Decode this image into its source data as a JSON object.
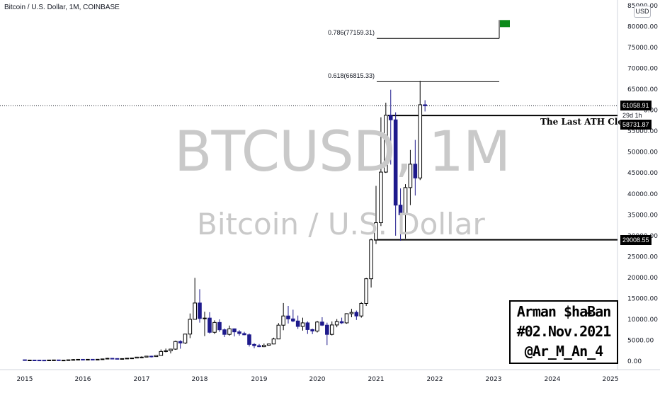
{
  "header": {
    "symbol_line": "Bitcoin / U.S. Dollar, 1M, COINBASE",
    "currency_badge": "USD"
  },
  "watermark": {
    "ticker": "BTCUSD, 1M",
    "name": "Bitcoin / U.S. Dollar"
  },
  "annotations": {
    "fib_786": "0.786(77159.31)",
    "fib_618": "0.618(66815.33)",
    "ath_label": "The Last ATH Close",
    "signature": [
      "Arman $haɃan",
      "#02.Nov.2021",
      "@Ar_M_An_4"
    ]
  },
  "price_tags": {
    "last_price": "61058.91",
    "countdown": "29d 1h",
    "ath_close": "58731.87",
    "support": "29008.55"
  },
  "colors": {
    "up_candle": "#000000",
    "down_candle": "#1e1a8c",
    "wick": "#000000",
    "flag": "#0c8a1a",
    "watermark": "#c9c9c9"
  },
  "chart_data": {
    "type": "candlestick",
    "interval": "1M",
    "ylim": [
      0,
      85000
    ],
    "y_ticks": [
      "85000.00",
      "80000.00",
      "75000.00",
      "70000.00",
      "65000.00",
      "60000.00",
      "55000.00",
      "50000.00",
      "45000.00",
      "40000.00",
      "35000.00",
      "30000.00",
      "25000.00",
      "20000.00",
      "15000.00",
      "10000.00",
      "5000.00",
      "0.00"
    ],
    "x_ticks": [
      "2015",
      "2016",
      "2017",
      "2018",
      "2019",
      "2020",
      "2021",
      "2022",
      "2023",
      "2024",
      "2025"
    ],
    "levels": [
      {
        "label": "0.786(77159.31)",
        "value": 77159.31
      },
      {
        "label": "0.618(66815.33)",
        "value": 66815.33
      },
      {
        "label": "The Last ATH Close",
        "value": 58731.87
      },
      {
        "label": "29008.55",
        "value": 29008.55
      }
    ],
    "candles": [
      {
        "date": "2015-01",
        "o": 320,
        "h": 320,
        "l": 170,
        "c": 220
      },
      {
        "date": "2015-02",
        "o": 220,
        "h": 270,
        "l": 210,
        "c": 255
      },
      {
        "date": "2015-03",
        "o": 255,
        "h": 300,
        "l": 240,
        "c": 245
      },
      {
        "date": "2015-04",
        "o": 245,
        "h": 260,
        "l": 215,
        "c": 235
      },
      {
        "date": "2015-05",
        "o": 235,
        "h": 245,
        "l": 230,
        "c": 230
      },
      {
        "date": "2015-06",
        "o": 230,
        "h": 265,
        "l": 220,
        "c": 265
      },
      {
        "date": "2015-07",
        "o": 265,
        "h": 315,
        "l": 255,
        "c": 285
      },
      {
        "date": "2015-08",
        "o": 285,
        "h": 285,
        "l": 200,
        "c": 230
      },
      {
        "date": "2015-09",
        "o": 230,
        "h": 245,
        "l": 225,
        "c": 237
      },
      {
        "date": "2015-10",
        "o": 237,
        "h": 330,
        "l": 235,
        "c": 315
      },
      {
        "date": "2015-11",
        "o": 315,
        "h": 500,
        "l": 305,
        "c": 378
      },
      {
        "date": "2015-12",
        "o": 378,
        "h": 465,
        "l": 345,
        "c": 430
      },
      {
        "date": "2016-01",
        "o": 430,
        "h": 465,
        "l": 350,
        "c": 368
      },
      {
        "date": "2016-02",
        "o": 368,
        "h": 440,
        "l": 365,
        "c": 437
      },
      {
        "date": "2016-03",
        "o": 437,
        "h": 440,
        "l": 400,
        "c": 416
      },
      {
        "date": "2016-04",
        "o": 416,
        "h": 465,
        "l": 415,
        "c": 448
      },
      {
        "date": "2016-05",
        "o": 448,
        "h": 545,
        "l": 440,
        "c": 531
      },
      {
        "date": "2016-06",
        "o": 531,
        "h": 780,
        "l": 530,
        "c": 673
      },
      {
        "date": "2016-07",
        "o": 673,
        "h": 705,
        "l": 610,
        "c": 624
      },
      {
        "date": "2016-08",
        "o": 624,
        "h": 625,
        "l": 540,
        "c": 575
      },
      {
        "date": "2016-09",
        "o": 575,
        "h": 630,
        "l": 570,
        "c": 608
      },
      {
        "date": "2016-10",
        "o": 608,
        "h": 720,
        "l": 605,
        "c": 700
      },
      {
        "date": "2016-11",
        "o": 700,
        "h": 760,
        "l": 680,
        "c": 742
      },
      {
        "date": "2016-12",
        "o": 742,
        "h": 975,
        "l": 740,
        "c": 963
      },
      {
        "date": "2017-01",
        "o": 963,
        "h": 1150,
        "l": 750,
        "c": 968
      },
      {
        "date": "2017-02",
        "o": 968,
        "h": 1200,
        "l": 915,
        "c": 1190
      },
      {
        "date": "2017-03",
        "o": 1190,
        "h": 1300,
        "l": 890,
        "c": 1080
      },
      {
        "date": "2017-04",
        "o": 1080,
        "h": 1350,
        "l": 1080,
        "c": 1350
      },
      {
        "date": "2017-05",
        "o": 1350,
        "h": 2790,
        "l": 1340,
        "c": 2300
      },
      {
        "date": "2017-06",
        "o": 2300,
        "h": 3000,
        "l": 2100,
        "c": 2480
      },
      {
        "date": "2017-07",
        "o": 2480,
        "h": 2950,
        "l": 1840,
        "c": 2870
      },
      {
        "date": "2017-08",
        "o": 2870,
        "h": 4900,
        "l": 2700,
        "c": 4700
      },
      {
        "date": "2017-09",
        "o": 4700,
        "h": 5000,
        "l": 2970,
        "c": 4340
      },
      {
        "date": "2017-10",
        "o": 4340,
        "h": 6450,
        "l": 4100,
        "c": 6470
      },
      {
        "date": "2017-11",
        "o": 6470,
        "h": 11400,
        "l": 5500,
        "c": 10000
      },
      {
        "date": "2017-12",
        "o": 10000,
        "h": 19900,
        "l": 10800,
        "c": 13900
      },
      {
        "date": "2018-01",
        "o": 13900,
        "h": 17200,
        "l": 9200,
        "c": 10200
      },
      {
        "date": "2018-02",
        "o": 10200,
        "h": 11800,
        "l": 6000,
        "c": 10300
      },
      {
        "date": "2018-03",
        "o": 10300,
        "h": 11700,
        "l": 6600,
        "c": 6900
      },
      {
        "date": "2018-04",
        "o": 6900,
        "h": 9750,
        "l": 6500,
        "c": 9250
      },
      {
        "date": "2018-05",
        "o": 9250,
        "h": 10000,
        "l": 7000,
        "c": 7500
      },
      {
        "date": "2018-06",
        "o": 7500,
        "h": 7800,
        "l": 5750,
        "c": 6400
      },
      {
        "date": "2018-07",
        "o": 6400,
        "h": 8500,
        "l": 6100,
        "c": 7730
      },
      {
        "date": "2018-08",
        "o": 7730,
        "h": 7800,
        "l": 5900,
        "c": 7000
      },
      {
        "date": "2018-09",
        "o": 7000,
        "h": 7400,
        "l": 6100,
        "c": 6600
      },
      {
        "date": "2018-10",
        "o": 6600,
        "h": 7000,
        "l": 6200,
        "c": 6300
      },
      {
        "date": "2018-11",
        "o": 6300,
        "h": 6600,
        "l": 3500,
        "c": 4000
      },
      {
        "date": "2018-12",
        "o": 4000,
        "h": 4300,
        "l": 3100,
        "c": 3700
      },
      {
        "date": "2019-01",
        "o": 3700,
        "h": 4100,
        "l": 3350,
        "c": 3450
      },
      {
        "date": "2019-02",
        "o": 3450,
        "h": 4200,
        "l": 3350,
        "c": 3800
      },
      {
        "date": "2019-03",
        "o": 3800,
        "h": 4100,
        "l": 3700,
        "c": 4100
      },
      {
        "date": "2019-04",
        "o": 4100,
        "h": 5600,
        "l": 4050,
        "c": 5300
      },
      {
        "date": "2019-05",
        "o": 5300,
        "h": 9100,
        "l": 5300,
        "c": 8600
      },
      {
        "date": "2019-06",
        "o": 8600,
        "h": 13900,
        "l": 7400,
        "c": 10800
      },
      {
        "date": "2019-07",
        "o": 10800,
        "h": 13200,
        "l": 9000,
        "c": 10100
      },
      {
        "date": "2019-08",
        "o": 10100,
        "h": 12300,
        "l": 9300,
        "c": 9600
      },
      {
        "date": "2019-09",
        "o": 9600,
        "h": 10900,
        "l": 7700,
        "c": 8300
      },
      {
        "date": "2019-10",
        "o": 8300,
        "h": 10400,
        "l": 7300,
        "c": 9150
      },
      {
        "date": "2019-11",
        "o": 9150,
        "h": 9500,
        "l": 6500,
        "c": 7550
      },
      {
        "date": "2019-12",
        "o": 7550,
        "h": 7750,
        "l": 6450,
        "c": 7200
      },
      {
        "date": "2020-01",
        "o": 7200,
        "h": 9600,
        "l": 6850,
        "c": 9350
      },
      {
        "date": "2020-02",
        "o": 9350,
        "h": 10500,
        "l": 8400,
        "c": 8600
      },
      {
        "date": "2020-03",
        "o": 8600,
        "h": 9200,
        "l": 3850,
        "c": 6400
      },
      {
        "date": "2020-04",
        "o": 6400,
        "h": 9500,
        "l": 6150,
        "c": 8650
      },
      {
        "date": "2020-05",
        "o": 8650,
        "h": 10050,
        "l": 8100,
        "c": 9450
      },
      {
        "date": "2020-06",
        "o": 9450,
        "h": 10400,
        "l": 8900,
        "c": 9150
      },
      {
        "date": "2020-07",
        "o": 9150,
        "h": 11450,
        "l": 8950,
        "c": 11350
      },
      {
        "date": "2020-08",
        "o": 11350,
        "h": 12500,
        "l": 10500,
        "c": 11650
      },
      {
        "date": "2020-09",
        "o": 11650,
        "h": 12100,
        "l": 9850,
        "c": 10800
      },
      {
        "date": "2020-10",
        "o": 10800,
        "h": 14100,
        "l": 10400,
        "c": 13800
      },
      {
        "date": "2020-11",
        "o": 13800,
        "h": 19900,
        "l": 13200,
        "c": 19700
      },
      {
        "date": "2020-12",
        "o": 19700,
        "h": 29300,
        "l": 17600,
        "c": 29000
      },
      {
        "date": "2021-01",
        "o": 29000,
        "h": 41900,
        "l": 28000,
        "c": 33100
      },
      {
        "date": "2021-02",
        "o": 33100,
        "h": 58300,
        "l": 32300,
        "c": 45200
      },
      {
        "date": "2021-03",
        "o": 45200,
        "h": 61800,
        "l": 45000,
        "c": 58800
      },
      {
        "date": "2021-04",
        "o": 58800,
        "h": 64900,
        "l": 47000,
        "c": 57700
      },
      {
        "date": "2021-05",
        "o": 57700,
        "h": 59500,
        "l": 30000,
        "c": 37300
      },
      {
        "date": "2021-06",
        "o": 37300,
        "h": 41300,
        "l": 28800,
        "c": 35000
      },
      {
        "date": "2021-07",
        "o": 35000,
        "h": 42300,
        "l": 29300,
        "c": 41500
      },
      {
        "date": "2021-08",
        "o": 41500,
        "h": 50500,
        "l": 37300,
        "c": 47100
      },
      {
        "date": "2021-09",
        "o": 47100,
        "h": 52900,
        "l": 39600,
        "c": 43800
      },
      {
        "date": "2021-10",
        "o": 43800,
        "h": 67000,
        "l": 43300,
        "c": 61300
      },
      {
        "date": "2021-11",
        "o": 61300,
        "h": 62400,
        "l": 59700,
        "c": 61058.91
      }
    ]
  }
}
